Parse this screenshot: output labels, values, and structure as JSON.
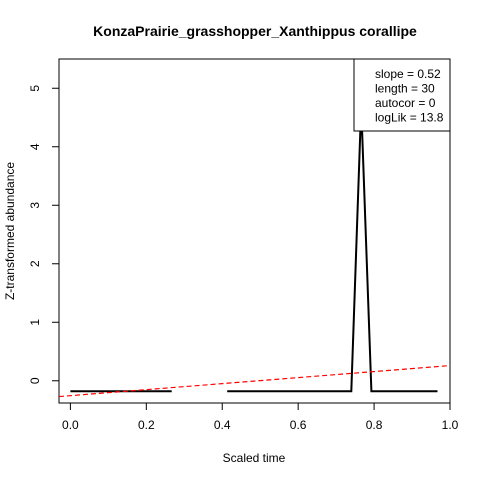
{
  "chart_data": {
    "type": "line",
    "title": "KonzaPrairie_grasshopper_Xanthippus corallipe",
    "xlabel": "Scaled time",
    "ylabel": "Z-transformed abundance",
    "xlim": [
      -0.03,
      1.0
    ],
    "ylim": [
      -0.38,
      5.5
    ],
    "x_ticks": [
      0.0,
      0.2,
      0.4,
      0.6,
      0.8,
      1.0
    ],
    "x_tick_labels": [
      "0.0",
      "0.2",
      "0.4",
      "0.6",
      "0.8",
      "1.0"
    ],
    "y_ticks": [
      0,
      1,
      2,
      3,
      4,
      5
    ],
    "y_tick_labels": [
      "0",
      "1",
      "2",
      "3",
      "4",
      "5"
    ],
    "grid": false,
    "series": [
      {
        "style": "solid",
        "color": "#000000",
        "segments": [
          [
            [
              0.0,
              -0.18
            ],
            [
              0.267,
              -0.18
            ]
          ],
          [
            [
              0.413,
              -0.18
            ],
            [
              0.74,
              -0.18
            ],
            [
              0.766,
              4.7
            ],
            [
              0.793,
              -0.18
            ],
            [
              0.967,
              -0.18
            ]
          ]
        ]
      },
      {
        "style": "dashed",
        "color": "#ff0000",
        "x": [
          -0.03,
          1.0
        ],
        "y": [
          -0.27,
          0.26
        ]
      }
    ],
    "legend_position": "top-right",
    "legend": {
      "lines": [
        "slope = 0.52",
        "length = 30",
        "autocor = 0",
        "logLik = 13.8"
      ]
    }
  }
}
